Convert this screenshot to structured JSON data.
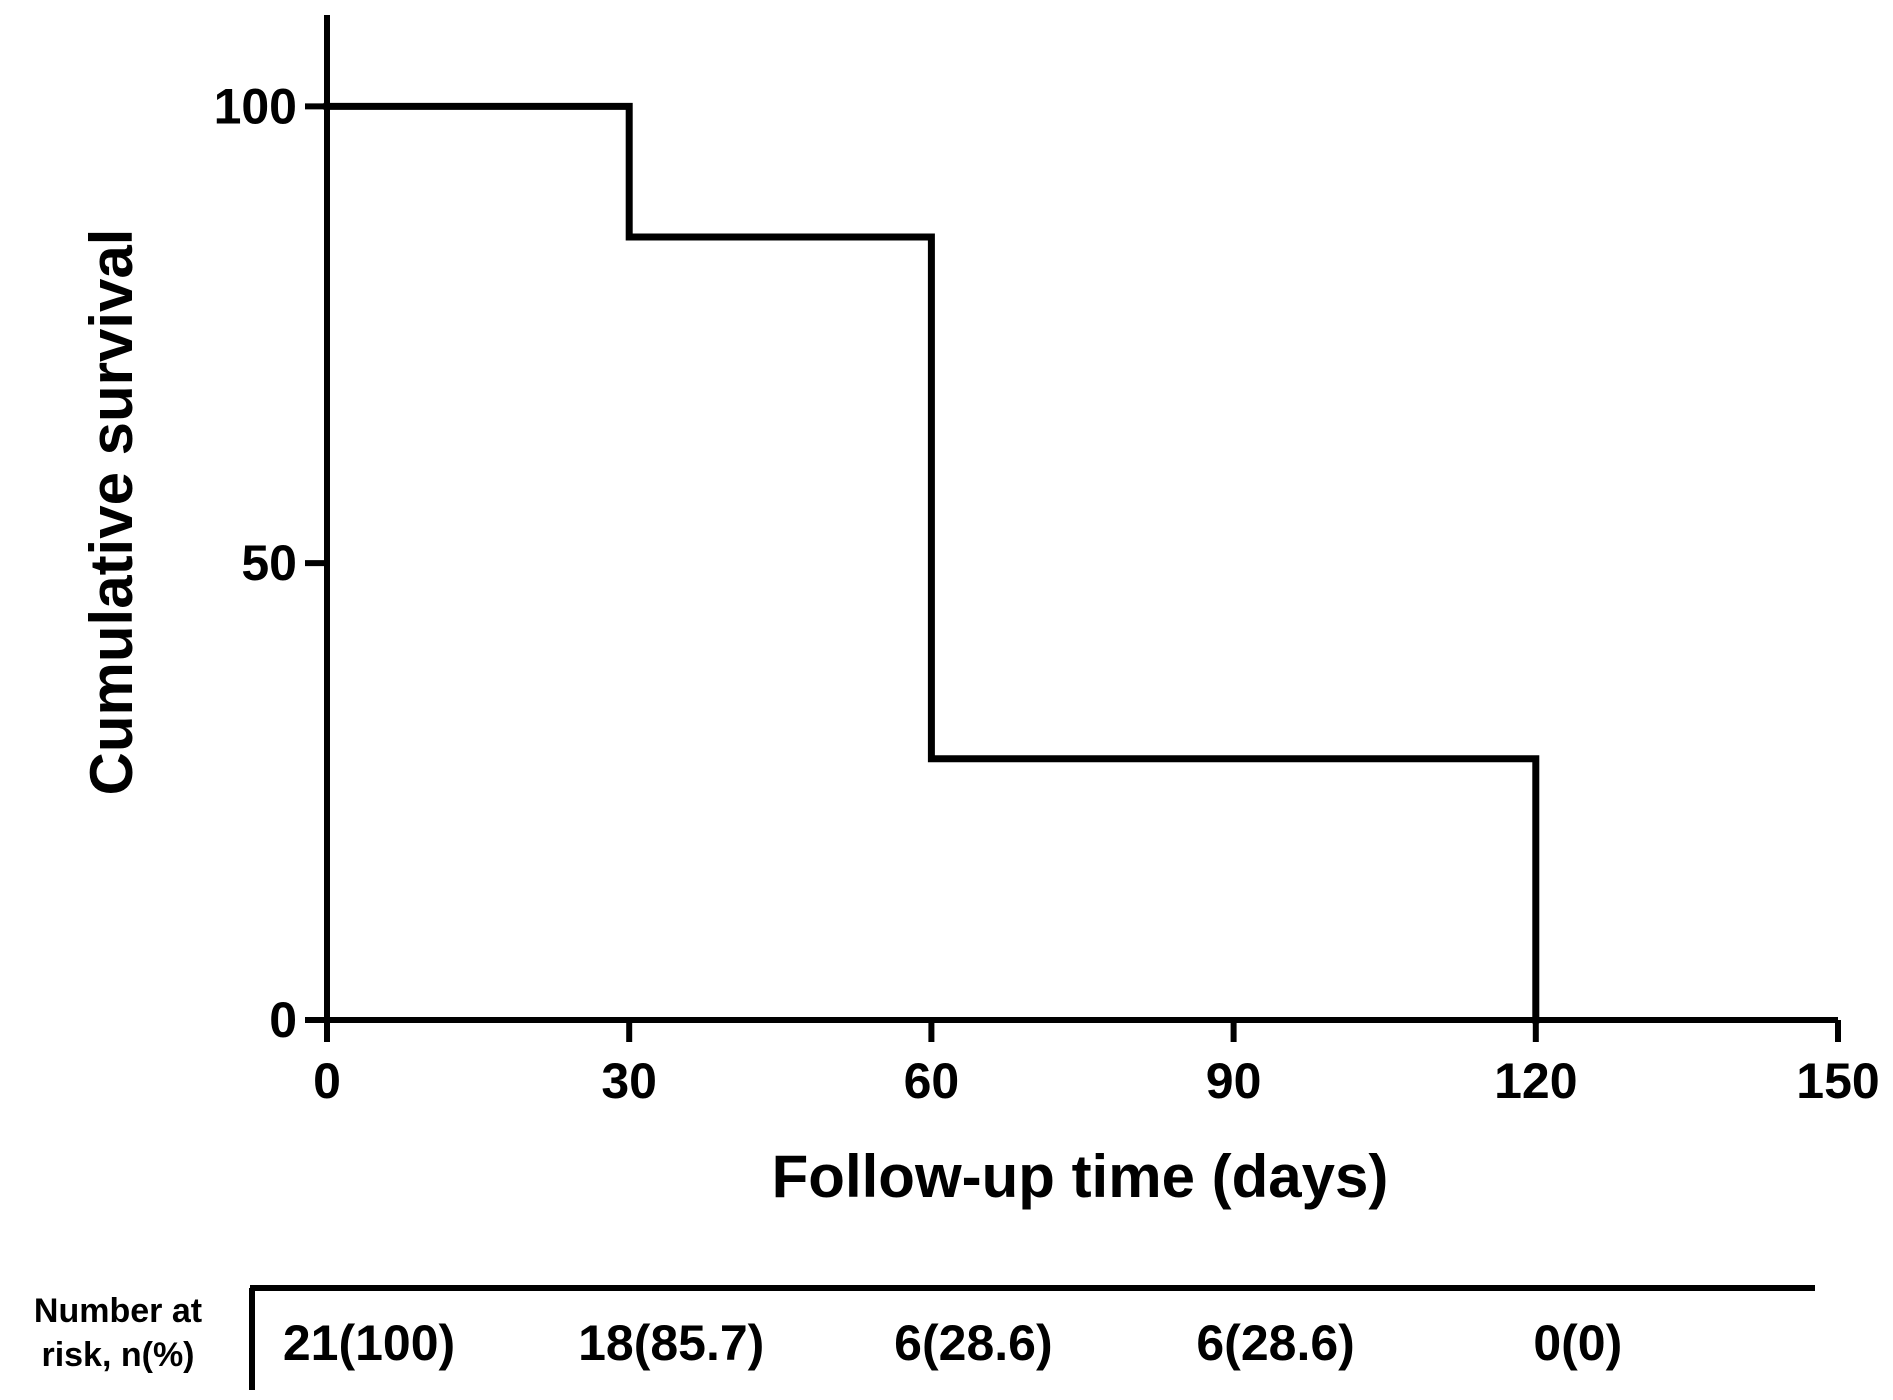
{
  "chart_data": {
    "type": "line",
    "step": true,
    "xlabel": "Follow-up time (days)",
    "ylabel": "Cumulative survival",
    "xlim": [
      0,
      150
    ],
    "ylim": [
      0,
      110
    ],
    "x_ticks": [
      0,
      30,
      60,
      90,
      120,
      150
    ],
    "y_ticks": [
      0,
      50,
      100
    ],
    "grid": false,
    "series": [
      {
        "points": [
          {
            "x": 0,
            "y": 100
          },
          {
            "x": 30,
            "y": 100
          },
          {
            "x": 30,
            "y": 85.7
          },
          {
            "x": 60,
            "y": 85.7
          },
          {
            "x": 60,
            "y": 28.6
          },
          {
            "x": 120,
            "y": 28.6
          },
          {
            "x": 120,
            "y": 0
          }
        ]
      }
    ],
    "risk_table": {
      "header_line1": "Number at",
      "header_line2": "risk, n(%)",
      "times": [
        0,
        30,
        60,
        90,
        120
      ],
      "values": [
        "21(100)",
        "18(85.7)",
        "6(28.6)",
        "6(28.6)",
        "0(0)"
      ]
    },
    "colors": {
      "line": "#000000",
      "axis": "#000000",
      "background": "#ffffff"
    }
  }
}
